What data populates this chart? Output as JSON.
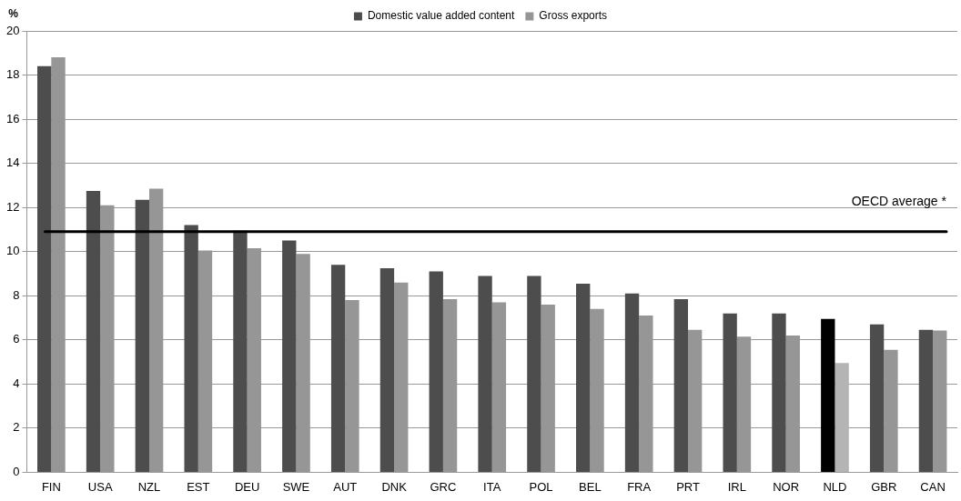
{
  "chart_data": {
    "type": "bar",
    "ylabel": "%",
    "categories": [
      "FIN",
      "USA",
      "NZL",
      "EST",
      "DEU",
      "SWE",
      "AUT",
      "DNK",
      "GRC",
      "ITA",
      "POL",
      "BEL",
      "FRA",
      "PRT",
      "IRL",
      "NOR",
      "NLD",
      "GBR",
      "CAN"
    ],
    "series": [
      {
        "name": "Domestic value added content",
        "color": "#4d4d4d",
        "colors": [
          "#4d4d4d",
          "#4d4d4d",
          "#4d4d4d",
          "#4d4d4d",
          "#4d4d4d",
          "#4d4d4d",
          "#4d4d4d",
          "#4d4d4d",
          "#4d4d4d",
          "#4d4d4d",
          "#4d4d4d",
          "#4d4d4d",
          "#4d4d4d",
          "#4d4d4d",
          "#4d4d4d",
          "#4d4d4d",
          "#000000",
          "#4d4d4d",
          "#4d4d4d"
        ],
        "values": [
          18.4,
          12.75,
          12.35,
          11.2,
          10.95,
          10.5,
          9.4,
          9.25,
          9.1,
          8.9,
          8.9,
          8.55,
          8.1,
          7.85,
          7.2,
          7.2,
          6.95,
          6.7,
          6.45
        ]
      },
      {
        "name": "Gross exports",
        "color": "#969696",
        "colors": [
          "#969696",
          "#969696",
          "#969696",
          "#969696",
          "#969696",
          "#969696",
          "#969696",
          "#969696",
          "#969696",
          "#969696",
          "#969696",
          "#969696",
          "#969696",
          "#969696",
          "#969696",
          "#969696",
          "#b4b4b4",
          "#969696",
          "#969696"
        ],
        "values": [
          18.8,
          12.1,
          12.85,
          10.05,
          10.15,
          9.9,
          7.8,
          8.6,
          7.85,
          7.7,
          7.6,
          7.4,
          7.1,
          6.45,
          6.15,
          6.2,
          4.95,
          5.55,
          6.42
        ]
      }
    ],
    "ylim": [
      0,
      20
    ],
    "yticks": [
      0,
      2,
      4,
      6,
      8,
      10,
      12,
      14,
      16,
      18,
      20
    ],
    "grid": "y",
    "legend": "top",
    "ref_lines": [
      {
        "axis": "y",
        "value": 10.9,
        "label": "OECD average *",
        "color": "#000000"
      }
    ]
  }
}
